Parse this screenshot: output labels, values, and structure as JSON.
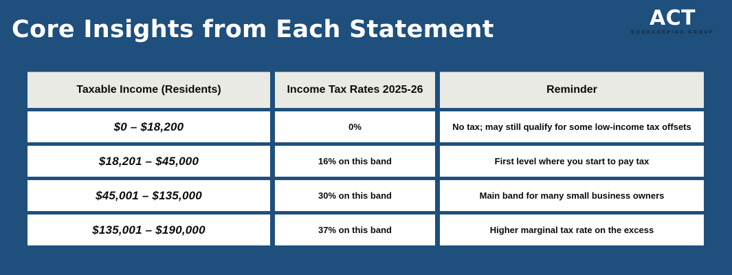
{
  "page": {
    "title": "Core Insights from Each Statement",
    "background_color": "#1F4F7C",
    "header_cell_color": "#EAEAE5",
    "cell_color": "#FFFFFF",
    "title_color": "#FFFFFF"
  },
  "logo": {
    "name": "ACT",
    "tagline": "BOOKKEEPING GROUP"
  },
  "table": {
    "headers": [
      "Taxable Income (Residents)",
      "Income Tax Rates 2025-26",
      "Reminder"
    ],
    "rows": [
      {
        "income": "$0 – $18,200",
        "rate": "0%",
        "reminder": "No tax; may still qualify for some low-income tax offsets"
      },
      {
        "income": "$18,201 – $45,000",
        "rate": "16% on this band",
        "reminder": "First level where you start to pay tax"
      },
      {
        "income": "$45,001 – $135,000",
        "rate": "30% on this band",
        "reminder": "Main band for many small business owners"
      },
      {
        "income": "$135,001 – $190,000",
        "rate": "37% on this band",
        "reminder": "Higher marginal tax rate on the excess"
      }
    ]
  },
  "chart_data": {
    "type": "table",
    "title": "Core Insights from Each Statement",
    "columns": [
      "Taxable Income (Residents)",
      "Income Tax Rates 2025-26",
      "Reminder"
    ],
    "rows": [
      [
        "$0 – $18,200",
        "0%",
        "No tax; may still qualify for some low-income tax offsets"
      ],
      [
        "$18,201 – $45,000",
        "16% on this band",
        "First level where you start to pay tax"
      ],
      [
        "$45,001 – $135,000",
        "30% on this band",
        "Main band for many small business owners"
      ],
      [
        "$135,001 – $190,000",
        "37% on this band",
        "Higher marginal tax rate on the excess"
      ]
    ]
  }
}
